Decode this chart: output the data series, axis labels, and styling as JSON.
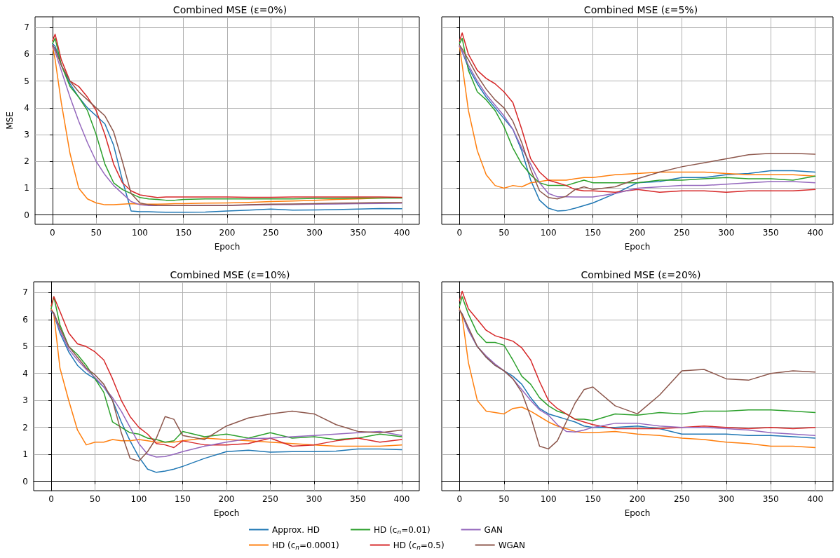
{
  "chart_data": [
    {
      "type": "line",
      "title": "Combined MSE (ε=0%)",
      "xlabel": "Epoch",
      "ylabel": "MSE",
      "grid": true,
      "x": [
        0,
        3,
        10,
        20,
        30,
        40,
        50,
        60,
        70,
        80,
        90,
        100,
        110,
        120,
        130,
        140,
        150,
        175,
        200,
        225,
        250,
        275,
        300,
        325,
        350,
        375,
        400
      ],
      "xlim": [
        -20,
        420
      ],
      "xticks": [
        0,
        50,
        100,
        150,
        200,
        250,
        300,
        350,
        400
      ],
      "ylim": [
        -0.35,
        7.4
      ],
      "yticks": [
        0,
        1,
        2,
        3,
        4,
        5,
        6,
        7
      ],
      "series": [
        {
          "color": "#1f77b4",
          "values": [
            6.4,
            6.3,
            5.6,
            4.9,
            4.4,
            4.0,
            3.7,
            3.4,
            2.6,
            1.3,
            0.15,
            0.12,
            0.12,
            0.11,
            0.1,
            0.1,
            0.1,
            0.11,
            0.15,
            0.18,
            0.22,
            0.18,
            0.19,
            0.2,
            0.22,
            0.24,
            0.23
          ]
        },
        {
          "color": "#ff7f0e",
          "values": [
            6.3,
            5.8,
            4.2,
            2.3,
            1.0,
            0.6,
            0.45,
            0.38,
            0.38,
            0.4,
            0.42,
            0.4,
            0.4,
            0.4,
            0.41,
            0.42,
            0.42,
            0.44,
            0.45,
            0.47,
            0.5,
            0.52,
            0.55,
            0.58,
            0.6,
            0.63,
            0.65
          ]
        },
        {
          "color": "#2ca02c",
          "values": [
            6.4,
            6.6,
            5.6,
            4.8,
            4.4,
            3.9,
            3.0,
            1.9,
            1.2,
            0.95,
            0.8,
            0.65,
            0.6,
            0.58,
            0.55,
            0.55,
            0.58,
            0.6,
            0.6,
            0.6,
            0.6,
            0.6,
            0.62,
            0.62,
            0.63,
            0.63,
            0.63
          ]
        },
        {
          "color": "#d62728",
          "values": [
            6.5,
            6.75,
            5.8,
            5.0,
            4.8,
            4.4,
            3.9,
            3.0,
            1.9,
            1.2,
            0.9,
            0.75,
            0.7,
            0.65,
            0.67,
            0.67,
            0.67,
            0.67,
            0.67,
            0.66,
            0.66,
            0.67,
            0.67,
            0.67,
            0.67,
            0.67,
            0.66
          ]
        },
        {
          "color": "#9467bd",
          "values": [
            6.3,
            6.1,
            5.4,
            4.4,
            3.5,
            2.7,
            2.0,
            1.5,
            1.1,
            0.8,
            0.5,
            0.38,
            0.35,
            0.35,
            0.35,
            0.35,
            0.35,
            0.35,
            0.35,
            0.37,
            0.38,
            0.39,
            0.4,
            0.41,
            0.42,
            0.43,
            0.44
          ]
        },
        {
          "color": "#8c564b",
          "values": [
            6.35,
            6.2,
            5.6,
            5.0,
            4.6,
            4.3,
            4.0,
            3.7,
            3.1,
            2.0,
            0.8,
            0.45,
            0.38,
            0.36,
            0.35,
            0.35,
            0.35,
            0.36,
            0.36,
            0.38,
            0.4,
            0.41,
            0.42,
            0.44,
            0.45,
            0.46,
            0.46
          ]
        }
      ]
    },
    {
      "type": "line",
      "title": "Combined MSE (ε=5%)",
      "xlabel": "Epoch",
      "grid": true,
      "tick_labels": "x",
      "x": [
        0,
        3,
        10,
        20,
        30,
        40,
        50,
        60,
        70,
        80,
        90,
        100,
        110,
        120,
        130,
        140,
        150,
        175,
        200,
        225,
        250,
        275,
        300,
        325,
        350,
        375,
        400
      ],
      "xlim": [
        -20,
        420
      ],
      "xticks": [
        0,
        50,
        100,
        150,
        200,
        250,
        300,
        350,
        400
      ],
      "ylim": [
        -0.35,
        7.4
      ],
      "yticks": [
        0,
        1,
        2,
        3,
        4,
        5,
        6,
        7
      ],
      "series": [
        {
          "color": "#1f77b4",
          "values": [
            6.3,
            6.1,
            5.5,
            4.9,
            4.4,
            4.0,
            3.6,
            3.2,
            2.4,
            1.3,
            0.55,
            0.25,
            0.15,
            0.17,
            0.25,
            0.35,
            0.45,
            0.8,
            1.2,
            1.25,
            1.4,
            1.4,
            1.5,
            1.55,
            1.65,
            1.65,
            1.6
          ]
        },
        {
          "color": "#ff7f0e",
          "values": [
            6.3,
            5.6,
            3.9,
            2.4,
            1.5,
            1.1,
            1.0,
            1.1,
            1.05,
            1.2,
            1.25,
            1.3,
            1.3,
            1.3,
            1.35,
            1.4,
            1.4,
            1.5,
            1.55,
            1.6,
            1.6,
            1.6,
            1.55,
            1.5,
            1.5,
            1.5,
            1.45
          ]
        },
        {
          "color": "#2ca02c",
          "values": [
            6.4,
            6.6,
            5.4,
            4.6,
            4.3,
            3.9,
            3.3,
            2.5,
            1.9,
            1.5,
            1.2,
            1.1,
            1.1,
            1.1,
            1.2,
            1.3,
            1.2,
            1.2,
            1.2,
            1.3,
            1.3,
            1.35,
            1.4,
            1.35,
            1.35,
            1.3,
            1.45
          ]
        },
        {
          "color": "#d62728",
          "values": [
            6.5,
            6.8,
            6.0,
            5.4,
            5.1,
            4.9,
            4.6,
            4.2,
            3.2,
            2.1,
            1.6,
            1.3,
            1.2,
            1.1,
            0.95,
            0.9,
            0.9,
            0.85,
            0.95,
            0.85,
            0.9,
            0.9,
            0.85,
            0.9,
            0.9,
            0.9,
            0.95
          ]
        },
        {
          "color": "#9467bd",
          "values": [
            6.3,
            6.1,
            5.6,
            5.0,
            4.5,
            4.1,
            3.7,
            3.2,
            2.5,
            1.9,
            1.2,
            0.8,
            0.68,
            0.68,
            0.67,
            0.67,
            0.67,
            0.8,
            1.0,
            1.05,
            1.1,
            1.1,
            1.15,
            1.2,
            1.25,
            1.25,
            1.2
          ]
        },
        {
          "color": "#8c564b",
          "values": [
            6.35,
            6.2,
            5.8,
            5.2,
            4.7,
            4.3,
            4.0,
            3.5,
            2.7,
            1.7,
            0.9,
            0.65,
            0.6,
            0.7,
            0.95,
            1.05,
            0.95,
            1.05,
            1.35,
            1.6,
            1.8,
            1.95,
            2.1,
            2.25,
            2.3,
            2.3,
            2.27
          ]
        }
      ]
    },
    {
      "type": "line",
      "title": "Combined MSE (ε=10%)",
      "xlabel": "Epoch",
      "grid": true,
      "x": [
        0,
        3,
        10,
        20,
        30,
        40,
        50,
        60,
        70,
        80,
        90,
        100,
        110,
        120,
        130,
        140,
        150,
        175,
        200,
        225,
        250,
        275,
        300,
        325,
        350,
        375,
        400
      ],
      "xlim": [
        -20,
        420
      ],
      "xticks": [
        0,
        50,
        100,
        150,
        200,
        250,
        300,
        350,
        400
      ],
      "ylim": [
        -0.35,
        7.4
      ],
      "yticks": [
        0,
        1,
        2,
        3,
        4,
        5,
        6,
        7
      ],
      "series": [
        {
          "color": "#1f77b4",
          "values": [
            6.3,
            6.2,
            5.5,
            4.8,
            4.3,
            4.0,
            3.8,
            3.5,
            3.0,
            2.2,
            1.5,
            0.9,
            0.45,
            0.33,
            0.38,
            0.45,
            0.55,
            0.85,
            1.1,
            1.15,
            1.08,
            1.1,
            1.1,
            1.12,
            1.2,
            1.2,
            1.17
          ]
        },
        {
          "color": "#ff7f0e",
          "values": [
            6.4,
            6.2,
            4.2,
            3.0,
            1.9,
            1.35,
            1.45,
            1.45,
            1.55,
            1.5,
            1.5,
            1.55,
            1.5,
            1.45,
            1.45,
            1.45,
            1.5,
            1.6,
            1.55,
            1.5,
            1.45,
            1.4,
            1.35,
            1.3,
            1.3,
            1.3,
            1.35
          ]
        },
        {
          "color": "#2ca02c",
          "values": [
            6.4,
            6.85,
            5.8,
            5.0,
            4.7,
            4.3,
            3.8,
            3.3,
            2.2,
            2.0,
            1.8,
            1.75,
            1.6,
            1.55,
            1.45,
            1.5,
            1.85,
            1.65,
            1.75,
            1.6,
            1.8,
            1.6,
            1.65,
            1.55,
            1.6,
            1.75,
            1.65
          ]
        },
        {
          "color": "#d62728",
          "values": [
            6.5,
            6.85,
            6.3,
            5.5,
            5.1,
            5.0,
            4.8,
            4.5,
            3.8,
            3.0,
            2.4,
            2.0,
            1.75,
            1.4,
            1.35,
            1.25,
            1.5,
            1.35,
            1.35,
            1.4,
            1.6,
            1.3,
            1.35,
            1.5,
            1.6,
            1.45,
            1.55
          ]
        },
        {
          "color": "#9467bd",
          "values": [
            6.35,
            6.2,
            5.6,
            4.9,
            4.5,
            4.15,
            3.85,
            3.5,
            3.1,
            2.6,
            2.0,
            1.4,
            1.0,
            0.9,
            0.92,
            1.0,
            1.1,
            1.3,
            1.45,
            1.58,
            1.6,
            1.65,
            1.7,
            1.75,
            1.8,
            1.85,
            1.7
          ]
        },
        {
          "color": "#8c564b",
          "values": [
            6.35,
            6.25,
            5.7,
            5.0,
            4.6,
            4.2,
            3.95,
            3.6,
            3.0,
            1.8,
            0.85,
            0.75,
            1.1,
            1.6,
            2.4,
            2.3,
            1.7,
            1.55,
            2.05,
            2.35,
            2.5,
            2.6,
            2.5,
            2.1,
            1.85,
            1.8,
            1.9
          ]
        }
      ]
    },
    {
      "type": "line",
      "title": "Combined MSE (ε=20%)",
      "xlabel": "Epoch",
      "grid": true,
      "tick_labels": "x",
      "legend": "bottom",
      "x": [
        0,
        3,
        10,
        20,
        30,
        40,
        50,
        60,
        70,
        80,
        90,
        100,
        110,
        120,
        130,
        140,
        150,
        175,
        200,
        225,
        250,
        275,
        300,
        325,
        350,
        375,
        400
      ],
      "xlim": [
        -20,
        420
      ],
      "xticks": [
        0,
        50,
        100,
        150,
        200,
        250,
        300,
        350,
        400
      ],
      "ylim": [
        -0.35,
        7.4
      ],
      "yticks": [
        0,
        1,
        2,
        3,
        4,
        5,
        6,
        7
      ],
      "series": [
        {
          "name": "Approx. HD",
          "color": "#1f77b4",
          "values": [
            6.35,
            6.2,
            5.6,
            5.0,
            4.6,
            4.3,
            4.1,
            3.9,
            3.6,
            3.1,
            2.7,
            2.5,
            2.4,
            2.3,
            2.2,
            2.05,
            2.0,
            2.0,
            2.05,
            1.95,
            1.75,
            1.75,
            1.75,
            1.7,
            1.7,
            1.65,
            1.6
          ]
        },
        {
          "name": "HD (c$_{n}$=0.0001)",
          "color": "#ff7f0e",
          "values": [
            6.4,
            6.1,
            4.4,
            3.0,
            2.6,
            2.55,
            2.5,
            2.7,
            2.75,
            2.6,
            2.4,
            2.2,
            2.05,
            1.95,
            1.85,
            1.8,
            1.8,
            1.85,
            1.75,
            1.7,
            1.6,
            1.55,
            1.45,
            1.4,
            1.3,
            1.3,
            1.25
          ]
        },
        {
          "name": "HD (c$_{n}$=0.01)",
          "color": "#2ca02c",
          "values": [
            6.5,
            6.85,
            6.2,
            5.5,
            5.15,
            5.15,
            5.05,
            4.5,
            3.9,
            3.6,
            3.1,
            2.8,
            2.6,
            2.5,
            2.3,
            2.3,
            2.25,
            2.5,
            2.45,
            2.55,
            2.5,
            2.6,
            2.6,
            2.65,
            2.65,
            2.6,
            2.55
          ]
        },
        {
          "name": "HD (c$_{n}$=0.5)",
          "color": "#d62728",
          "values": [
            6.7,
            7.05,
            6.4,
            6.0,
            5.6,
            5.4,
            5.3,
            5.2,
            4.95,
            4.5,
            3.7,
            3.0,
            2.7,
            2.5,
            2.3,
            2.2,
            2.1,
            1.95,
            1.95,
            1.95,
            2.0,
            2.05,
            2.0,
            1.95,
            2.0,
            1.95,
            2.0
          ]
        },
        {
          "name": "GAN",
          "color": "#9467bd",
          "values": [
            6.35,
            6.2,
            5.6,
            5.0,
            4.65,
            4.35,
            4.1,
            3.8,
            3.4,
            3.0,
            2.65,
            2.45,
            2.1,
            1.85,
            1.83,
            1.9,
            2.0,
            2.15,
            2.15,
            2.05,
            2.0,
            2.0,
            1.95,
            1.9,
            1.8,
            1.75,
            1.7
          ]
        },
        {
          "name": "WGAN",
          "color": "#8c564b",
          "values": [
            6.35,
            6.2,
            5.7,
            5.0,
            4.6,
            4.3,
            4.1,
            3.8,
            3.3,
            2.4,
            1.3,
            1.2,
            1.5,
            2.2,
            2.9,
            3.4,
            3.5,
            2.8,
            2.5,
            3.2,
            4.1,
            4.15,
            3.8,
            3.75,
            4.0,
            4.1,
            4.05
          ]
        }
      ]
    }
  ]
}
